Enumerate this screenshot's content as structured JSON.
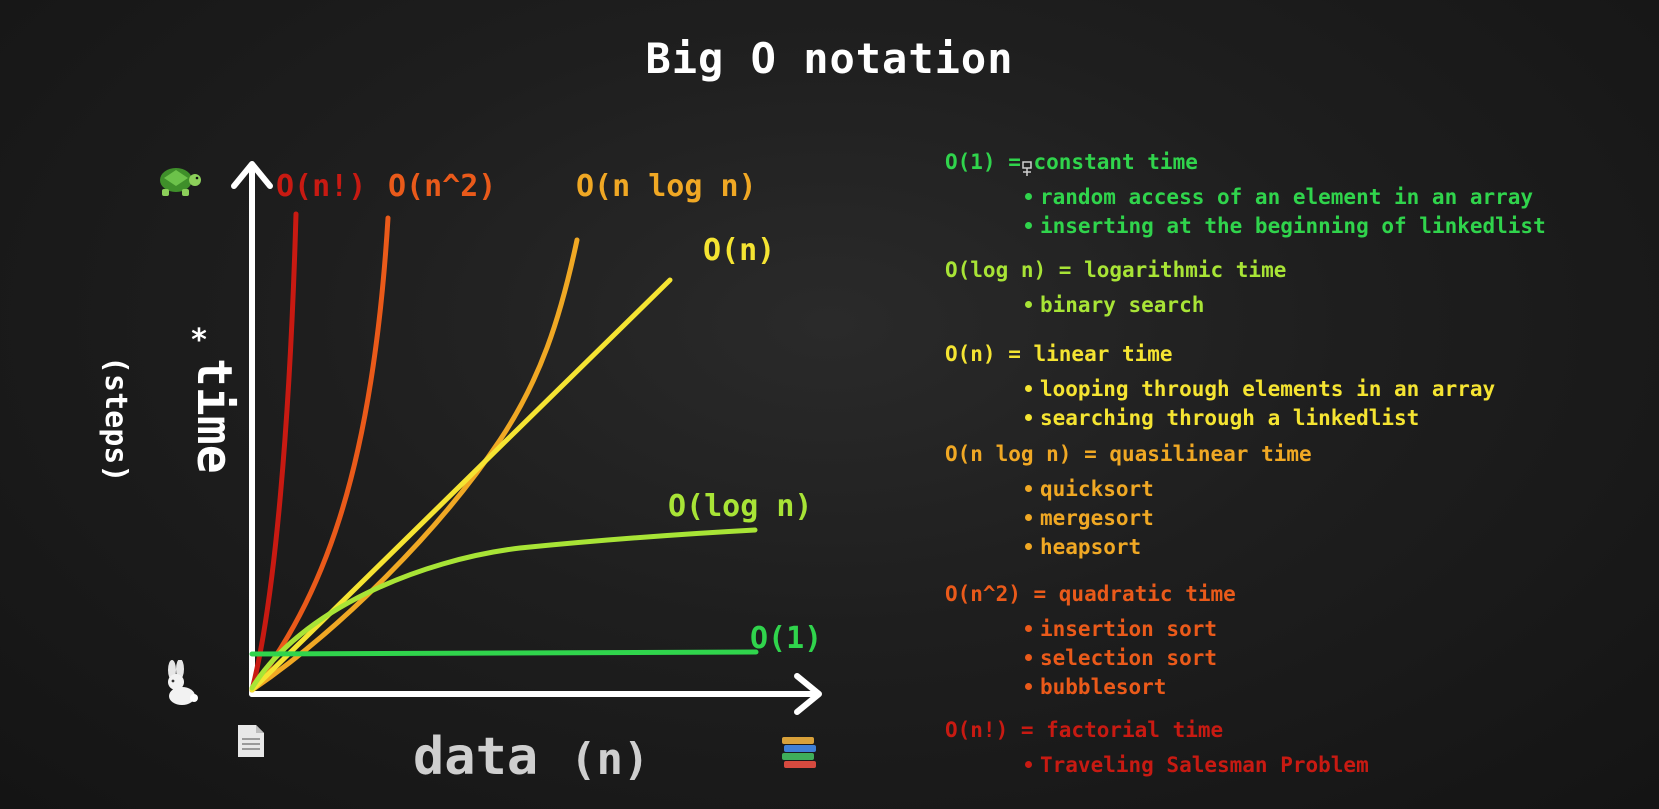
{
  "title": "Big O notation",
  "icons": {
    "top_y": "turtle-icon",
    "bottom_y": "rabbit-icon",
    "left_x": "page-icon",
    "right_x": "books-icon"
  },
  "chart_data": {
    "type": "line",
    "xlabel": "data",
    "xlabel_unit": "(n)",
    "ylabel": "time",
    "ylabel_mark": "*",
    "ylabel_unit": "(steps)",
    "series": [
      {
        "name": "O(n!)",
        "color": "#c81a12"
      },
      {
        "name": "O(n^2)",
        "color": "#ea5a1a"
      },
      {
        "name": "O(n log n)",
        "color": "#f0a824"
      },
      {
        "name": "O(n)",
        "color": "#f5e432"
      },
      {
        "name": "O(log n)",
        "color": "#a8e436"
      },
      {
        "name": "O(1)",
        "color": "#30d44c"
      }
    ]
  },
  "notes": [
    {
      "heading": "O(1) = constant time",
      "color": "#30d44c",
      "items": [
        "random access of an element in an array",
        "inserting at the beginning of linkedlist"
      ]
    },
    {
      "heading": "O(log n) = logarithmic time",
      "color": "#a8e436",
      "items": [
        "binary search"
      ]
    },
    {
      "heading": "O(n) = linear time",
      "color": "#f5e432",
      "items": [
        "looping through elements in an array",
        "searching through a linkedlist"
      ]
    },
    {
      "heading": "O(n log n) = quasilinear time",
      "color": "#f0a824",
      "items": [
        "quicksort",
        "mergesort",
        "heapsort"
      ]
    },
    {
      "heading": "O(n^2) = quadratic time",
      "color": "#ea5a1a",
      "items": [
        "insertion sort",
        "selection sort",
        "bubblesort"
      ]
    },
    {
      "heading": "O(n!) = factorial time",
      "color": "#c81a12",
      "items": [
        "Traveling Salesman Problem"
      ]
    }
  ]
}
